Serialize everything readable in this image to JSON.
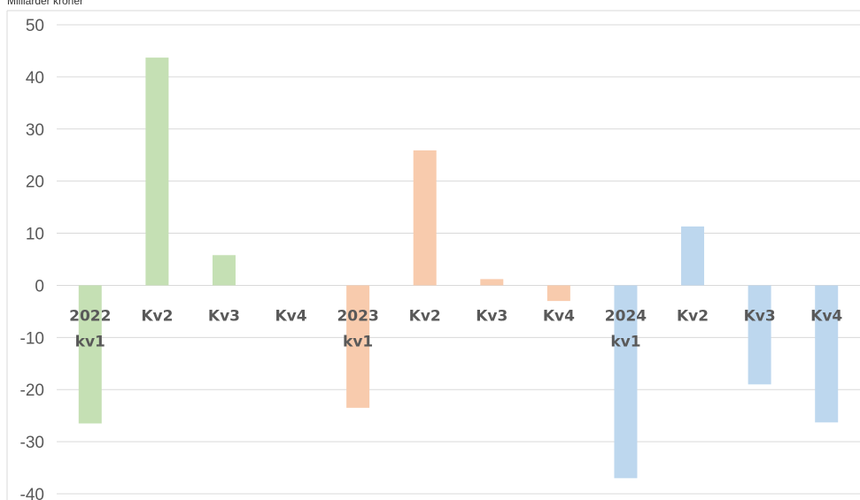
{
  "chart_data": {
    "type": "bar",
    "ylabel": "Milliarder kroner",
    "ylim": [
      -40,
      50
    ],
    "yticks": [
      50,
      40,
      30,
      20,
      10,
      0,
      -10,
      -20,
      -30,
      -40
    ],
    "grid": true,
    "categories": [
      [
        "2022",
        "kv1"
      ],
      [
        "Kv2"
      ],
      [
        "Kv3"
      ],
      [
        "Kv4"
      ],
      [
        "2023",
        "kv1"
      ],
      [
        "Kv2"
      ],
      [
        "Kv3"
      ],
      [
        "Kv4"
      ],
      [
        "2024",
        "kv1"
      ],
      [
        "Kv2"
      ],
      [
        "Kv3"
      ],
      [
        "Kv4"
      ]
    ],
    "values": [
      -26.5,
      43.7,
      5.8,
      0,
      -23.5,
      25.9,
      1.2,
      -3.0,
      -37.0,
      11.3,
      -19.0,
      -26.3
    ],
    "colors": [
      "#c5e0b4",
      "#c5e0b4",
      "#c5e0b4",
      "#c5e0b4",
      "#f8cbad",
      "#f8cbad",
      "#f8cbad",
      "#f8cbad",
      "#bdd7ee",
      "#bdd7ee",
      "#bdd7ee",
      "#bdd7ee"
    ],
    "gridColor": "#d9d9d9"
  }
}
